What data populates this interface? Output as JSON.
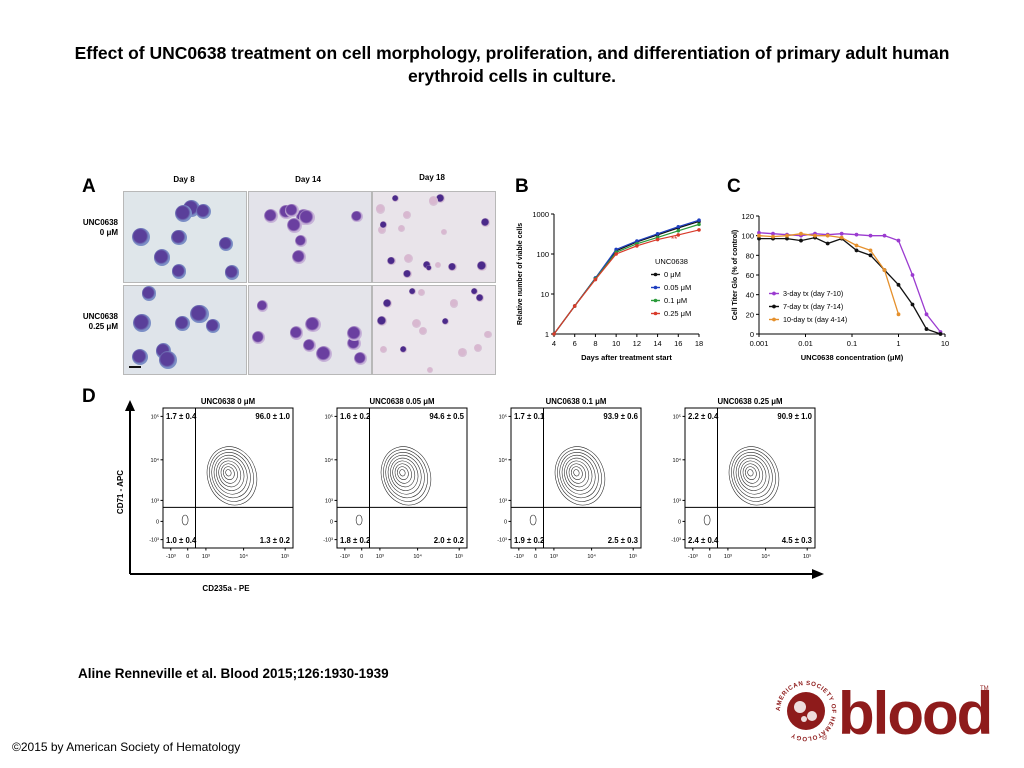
{
  "title": "Effect of UNC0638 treatment on cell morphology, proliferation, and differentiation of primary adult human erythroid cells in culture.",
  "citation": "Aline Renneville et al. Blood 2015;126:1930-1939",
  "copyright": "©2015 by American Society of Hematology",
  "logo": {
    "text": "blood",
    "ring_text": "AMERICAN SOCIETY OF HEMATOLOGY",
    "tm": "TM",
    "reg": "®"
  },
  "colors": {
    "blood_red": "#8e1b1b",
    "wright_purple": "#6a3fa0",
    "series_black": "#111111",
    "series_blue": "#1f3fbf",
    "series_green": "#2a9a3a",
    "series_red": "#d83a2a",
    "series_purple": "#9b3bd0",
    "series_orange": "#e5902c"
  },
  "panelA": {
    "label": "A",
    "columns": [
      "Day 8",
      "Day 14",
      "Day 18"
    ],
    "rows": [
      {
        "line1": "UNC0638",
        "line2": "0 μM"
      },
      {
        "line1": "UNC0638",
        "line2": "0.25 μM"
      }
    ]
  },
  "chart_data": [
    {
      "panel": "B",
      "type": "line",
      "xlabel": "Days after treatment start",
      "ylabel": "Relative number of viable cells",
      "x": [
        4,
        6,
        8,
        10,
        12,
        14,
        16,
        18
      ],
      "xlim": [
        4,
        18
      ],
      "ylim": [
        1,
        1000
      ],
      "yscale": "log",
      "xticks": [
        "4",
        "6",
        "8",
        "10",
        "12",
        "14",
        "16",
        "18"
      ],
      "yticks": [
        "1",
        "10",
        "100",
        "1000"
      ],
      "legend_title": "UNC0638",
      "legend_position": "right",
      "annotation": "**",
      "series": [
        {
          "name": "0 μM",
          "color": "#111111",
          "values": [
            1,
            5,
            25,
            120,
            200,
            300,
            450,
            650
          ]
        },
        {
          "name": "0.05 μM",
          "color": "#1f3fbf",
          "values": [
            1,
            5,
            25,
            130,
            210,
            320,
            480,
            700
          ]
        },
        {
          "name": "0.1 μM",
          "color": "#2a9a3a",
          "values": [
            1,
            5,
            24,
            110,
            180,
            260,
            380,
            550
          ]
        },
        {
          "name": "0.25 μM",
          "color": "#d83a2a",
          "values": [
            1,
            5,
            23,
            100,
            160,
            230,
            300,
            400
          ]
        }
      ]
    },
    {
      "panel": "C",
      "type": "line",
      "xlabel": "UNC0638 concentration (μM)",
      "ylabel": "Cell Titer Glo (% of control)",
      "xscale": "log",
      "xlim": [
        0.001,
        10
      ],
      "ylim": [
        0,
        120
      ],
      "xticks": [
        "0.001",
        "0.01",
        "0.1",
        "1",
        "10"
      ],
      "yticks": [
        "0",
        "20",
        "40",
        "60",
        "80",
        "100",
        "120"
      ],
      "legend_position": "bottom-left",
      "series": [
        {
          "name": "3-day tx (day 7-10)",
          "color": "#9b3bd0",
          "x": [
            0.001,
            0.002,
            0.004,
            0.008,
            0.016,
            0.03,
            0.06,
            0.125,
            0.25,
            0.5,
            1,
            2,
            4,
            8
          ],
          "values": [
            103,
            102,
            101,
            100,
            102,
            101,
            102,
            101,
            100,
            100,
            95,
            60,
            20,
            2
          ]
        },
        {
          "name": "7-day tx (day 7-14)",
          "color": "#111111",
          "x": [
            0.001,
            0.002,
            0.004,
            0.008,
            0.016,
            0.03,
            0.06,
            0.125,
            0.25,
            0.5,
            1,
            2,
            4,
            8
          ],
          "values": [
            97,
            97,
            97,
            95,
            98,
            92,
            97,
            85,
            80,
            65,
            50,
            30,
            5,
            0
          ]
        },
        {
          "name": "10-day tx (day 4-14)",
          "color": "#e5902c",
          "x": [
            0.001,
            0.002,
            0.004,
            0.008,
            0.016,
            0.03,
            0.06,
            0.125,
            0.25,
            0.5,
            1
          ],
          "values": [
            100,
            99,
            100,
            102,
            100,
            100,
            98,
            90,
            85,
            65,
            20
          ]
        }
      ]
    },
    {
      "panel": "D",
      "type": "scatter",
      "xlabel": "CD235a - PE",
      "ylabel": "CD71 - APC",
      "xticks": [
        "-10³",
        "0",
        "10³",
        "10⁴",
        "10⁵"
      ],
      "yticks": [
        "-10³",
        "0",
        "10³",
        "10⁴",
        "10⁵"
      ],
      "plots": [
        {
          "title": "UNC0638 0 μM",
          "q_ul": "1.7 ± 0.4",
          "q_ur": "96.0 ± 1.0",
          "q_ll": "1.0 ± 0.4",
          "q_lr": "1.3 ± 0.2"
        },
        {
          "title": "UNC0638 0.05 μM",
          "q_ul": "1.6 ± 0.2",
          "q_ur": "94.6 ± 0.5",
          "q_ll": "1.8 ± 0.2",
          "q_lr": "2.0 ± 0.2"
        },
        {
          "title": "UNC0638 0.1 μM",
          "q_ul": "1.7 ± 0.1",
          "q_ur": "93.9 ± 0.6",
          "q_ll": "1.9 ± 0.2",
          "q_lr": "2.5 ± 0.3"
        },
        {
          "title": "UNC0638 0.25 μM",
          "q_ul": "2.2 ± 0.4",
          "q_ur": "90.9 ± 1.0",
          "q_ll": "2.4 ± 0.4",
          "q_lr": "4.5 ± 0.3"
        }
      ]
    }
  ]
}
